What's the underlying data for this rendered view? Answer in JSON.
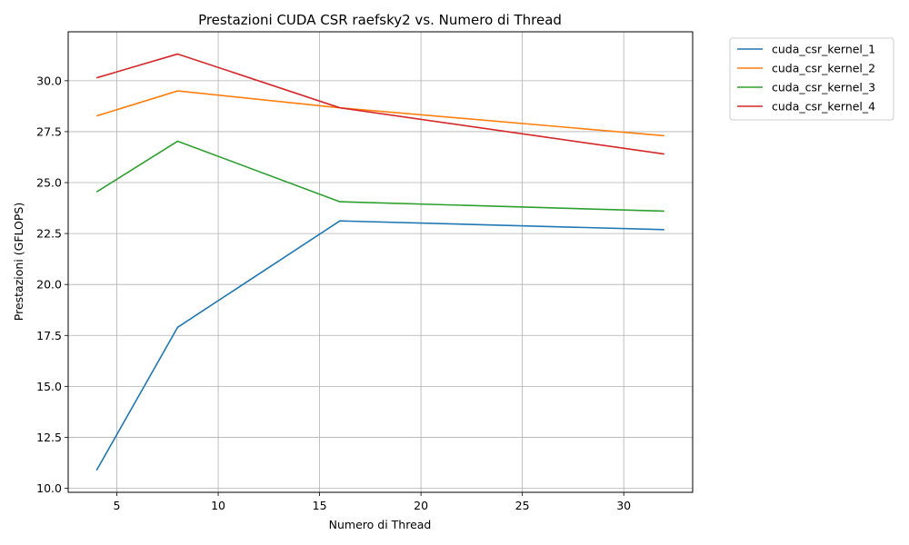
{
  "chart_data": {
    "type": "line",
    "title": "Prestazioni CUDA CSR raefsky2 vs. Numero di Thread",
    "xlabel": "Numero di Thread",
    "ylabel": "Prestazioni (GFLOPS)",
    "x": [
      4,
      8,
      16,
      32
    ],
    "xlim": [
      2.6,
      33.4
    ],
    "ylim": [
      9.8,
      32.4
    ],
    "xticks": [
      5,
      10,
      15,
      20,
      25,
      30
    ],
    "yticks": [
      10.0,
      12.5,
      15.0,
      17.5,
      20.0,
      22.5,
      25.0,
      27.5,
      30.0
    ],
    "grid": true,
    "legend_position": "outside-top-right",
    "series": [
      {
        "name": "cuda_csr_kernel_1",
        "color": "#1f77b4",
        "values": [
          10.88,
          17.9,
          23.12,
          22.69
        ]
      },
      {
        "name": "cuda_csr_kernel_2",
        "color": "#ff7f0e",
        "values": [
          28.27,
          29.5,
          28.67,
          27.3
        ]
      },
      {
        "name": "cuda_csr_kernel_3",
        "color": "#2ca02c",
        "values": [
          24.54,
          27.03,
          24.06,
          23.6
        ]
      },
      {
        "name": "cuda_csr_kernel_4",
        "color": "#d62728",
        "values": [
          30.14,
          31.31,
          28.67,
          26.4
        ]
      }
    ]
  }
}
